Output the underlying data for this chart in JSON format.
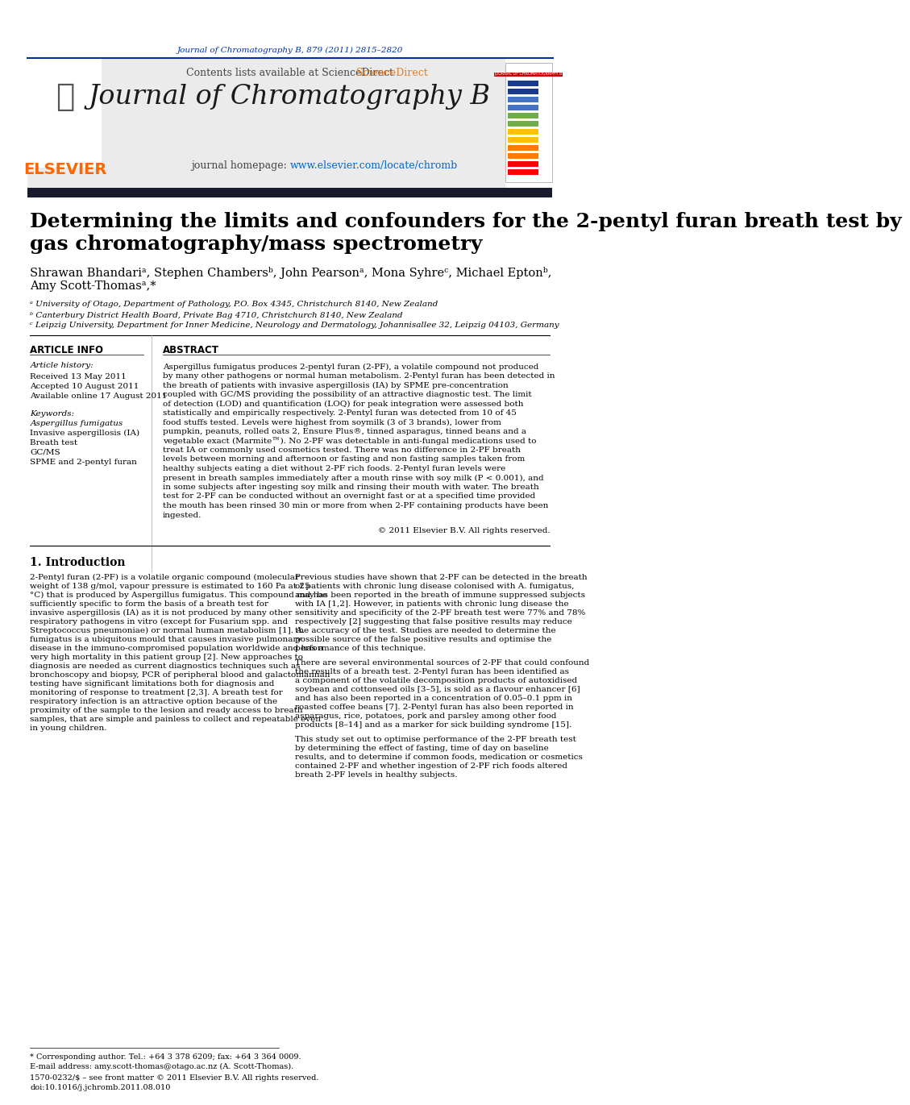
{
  "page_title_small": "Journal of Chromatography B, 879 (2011) 2815–2820",
  "journal_name": "Journal of Chromatography B",
  "journal_homepage": "journal homepage: www.elsevier.com/locate/chromb",
  "contents_text": "Contents lists available at ScienceDirect",
  "article_title_line1": "Determining the limits and confounders for the 2-pentyl furan breath test by",
  "article_title_line2": "gas chromatography/mass spectrometry",
  "authors": "Shrawan Bhandariᵃ, Stephen Chambersᵇ, John Pearsonᵃ, Mona Syhreᶜ, Michael Eptonᵇ,",
  "authors2": "Amy Scott-Thomasᵃ,*",
  "affil_a": "ᵃ University of Otago, Department of Pathology, P.O. Box 4345, Christchurch 8140, New Zealand",
  "affil_b": "ᵇ Canterbury District Health Board, Private Bag 4710, Christchurch 8140, New Zealand",
  "affil_c": "ᶜ Leipzig University, Department for Inner Medicine, Neurology and Dermatology, Johannisallee 32, Leipzig 04103, Germany",
  "article_info_title": "ARTICLE INFO",
  "article_history": "Article history:",
  "received": "Received 13 May 2011",
  "accepted": "Accepted 10 August 2011",
  "available": "Available online 17 August 2011",
  "keywords_title": "Keywords:",
  "keywords": "Aspergillus fumigatus\nInvasive aspergillosis (IA)\nBreath test\nGC/MS\nSPME and 2-pentyl furan",
  "abstract_title": "ABSTRACT",
  "abstract_text": "Aspergillus fumigatus produces 2-pentyl furan (2-PF), a volatile compound not produced by many other pathogens or normal human metabolism. 2-Pentyl furan has been detected in the breath of patients with invasive aspergillosis (IA) by SPME pre-concentration coupled with GC/MS providing the possibility of an attractive diagnostic test. The limit of detection (LOD) and quantification (LOQ) for peak integration were assessed both statistically and empirically respectively. 2-Pentyl furan was detected from 10 of 45 food stuffs tested. Levels were highest from soymilk (3 of 3 brands), lower from pumpkin, peanuts, rolled oats 2, Ensure Plus®, tinned asparagus, tinned beans and a vegetable exact (Marmite™). No 2-PF was detectable in anti-fungal medications used to treat IA or commonly used cosmetics tested. There was no difference in 2-PF breath levels between morning and afternoon or fasting and non fasting samples taken from healthy subjects eating a diet without 2-PF rich foods. 2-Pentyl furan levels were present in breath samples immediately after a mouth rinse with soy milk (P < 0.001), and in some subjects after ingesting soy milk and rinsing their mouth with water. The breath test for 2-PF can be conducted without an overnight fast or at a specified time provided the mouth has been rinsed 30 min or more from when 2-PF containing products have been ingested.",
  "copyright": "© 2011 Elsevier B.V. All rights reserved.",
  "intro_title": "1. Introduction",
  "intro_col1": "2-Pentyl furan (2-PF) is a volatile organic compound (molecular weight of 138 g/mol, vapour pressure is estimated to 160 Pa at 25 °C) that is produced by Aspergillus fumigatus. This compound may be sufficiently specific to form the basis of a breath test for invasive aspergillosis (IA) as it is not produced by many other respiratory pathogens in vitro (except for Fusarium spp. and Streptococcus pneumoniae) or normal human metabolism [1]. A. fumigatus is a ubiquitous mould that causes invasive pulmonary disease in the immuno-compromised population worldwide and has a very high mortality in this patient group [2]. New approaches to diagnosis are needed as current diagnostics techniques such as bronchoscopy and biopsy, PCR of peripheral blood and galactomannan testing have significant limitations both for diagnosis and monitoring of response to treatment [2,3]. A breath test for respiratory infection is an attractive option because of the proximity of the sample to the lesion and ready access to breath samples, that are simple and painless to collect and repeatable even in young children.",
  "intro_col2": "Previous studies have shown that 2-PF can be detected in the breath of patients with chronic lung disease colonised with A. fumigatus, and has been reported in the breath of immune suppressed subjects with IA [1,2]. However, in patients with chronic lung disease the sensitivity and specificity of the 2-PF breath test were 77% and 78% respectively [2] suggesting that false positive results may reduce the accuracy of the test. Studies are needed to determine the possible source of the false positive results and optimise the performance of this technique.\n\nThere are several environmental sources of 2-PF that could confound the results of a breath test. 2-Pentyl furan has been identified as a component of the volatile decomposition products of autoxidised soybean and cottonseed oils [3–5], is sold as a flavour enhancer [6] and has also been reported in a concentration of 0.05–0.1 ppm in roasted coffee beans [7]. 2-Pentyl furan has also been reported in asparagus, rice, potatoes, pork and parsley among other food products [8–14] and as a marker for sick building syndrome [15].\n\nThis study set out to optimise performance of the 2-PF breath test by determining the effect of fasting, time of day on baseline results, and to determine if common foods, medication or cosmetics contained 2-PF and whether ingestion of 2-PF rich foods altered breath 2-PF levels in healthy subjects.",
  "footnote1": "* Corresponding author. Tel.: +64 3 378 6209; fax: +64 3 364 0009.",
  "footnote2": "E-mail address: amy.scott-thomas@otago.ac.nz (A. Scott-Thomas).",
  "footnote3": "1570-0232/$ – see front matter © 2011 Elsevier B.V. All rights reserved.",
  "footnote4": "doi:10.1016/j.jchromb.2011.08.010",
  "bg_color": "#ffffff",
  "header_bg": "#f0f0f0",
  "dark_bar_color": "#1a1a2e",
  "blue_color": "#003399",
  "link_color": "#0066cc",
  "elsevier_orange": "#ff6600",
  "text_color": "#000000",
  "sciencedirect_color": "#e67e22"
}
